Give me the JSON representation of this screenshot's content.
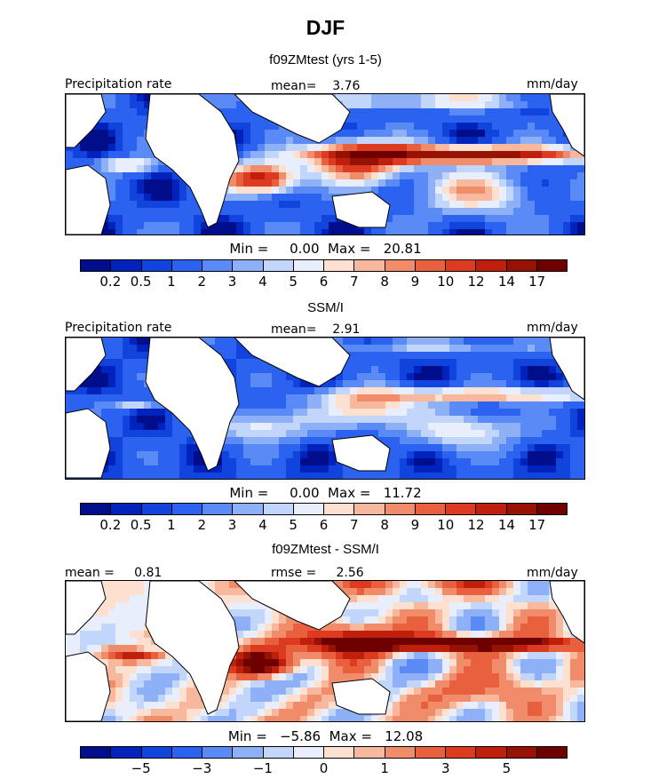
{
  "season": "DJF",
  "colors": {
    "ramp": [
      "#000e8c",
      "#0022bd",
      "#1144dd",
      "#2b62f0",
      "#5a8af5",
      "#8eb0f7",
      "#c2d5fa",
      "#e8eefb",
      "#fde0d0",
      "#f8b89e",
      "#f08c6a",
      "#e9603f",
      "#dd3b1f",
      "#c01f0e",
      "#961203",
      "#6e0000"
    ],
    "land": "#ffffff",
    "coast": "#000000"
  },
  "panels": [
    {
      "title": "f09ZMtest (yrs 1-5)",
      "left_label": "Precipitation rate",
      "mid_label": "mean=    3.76",
      "right_label": "mm/day",
      "minmax": "Min =     0.00  Max =   20.81",
      "tick_labels": [
        "0.2",
        "0.5",
        "1",
        "2",
        "3",
        "4",
        "5",
        "6",
        "7",
        "8",
        "9",
        "10",
        "12",
        "14",
        "17"
      ],
      "field_kind": "model"
    },
    {
      "title": "SSM/I",
      "left_label": "Precipitation rate",
      "mid_label": "mean=    2.91",
      "right_label": "mm/day",
      "minmax": "Min =     0.00  Max =   11.72",
      "tick_labels": [
        "0.2",
        "0.5",
        "1",
        "2",
        "3",
        "4",
        "5",
        "6",
        "7",
        "8",
        "9",
        "10",
        "12",
        "14",
        "17"
      ],
      "field_kind": "obs"
    },
    {
      "title": "f09ZMtest - SSM/I",
      "left_label": "mean =     0.81",
      "mid_label": "rmse =     2.56",
      "right_label": "mm/day",
      "minmax": "Min =   −5.86  Max =   12.08",
      "tick_labels": [
        "−5",
        "−3",
        "−1",
        "0",
        "1",
        "3",
        "5"
      ],
      "field_kind": "diff"
    }
  ],
  "chart_data": [
    {
      "type": "heatmap",
      "title": "f09ZMtest (yrs 1-5)",
      "units": "mm/day",
      "mean": 3.76,
      "min": 0.0,
      "max": 20.81,
      "contour_levels": [
        0.2,
        0.5,
        1,
        2,
        3,
        4,
        5,
        6,
        7,
        8,
        9,
        10,
        12,
        14,
        17
      ]
    },
    {
      "type": "heatmap",
      "title": "SSM/I",
      "units": "mm/day",
      "mean": 2.91,
      "min": 0.0,
      "max": 11.72,
      "contour_levels": [
        0.2,
        0.5,
        1,
        2,
        3,
        4,
        5,
        6,
        7,
        8,
        9,
        10,
        12,
        14,
        17
      ]
    },
    {
      "type": "heatmap",
      "title": "f09ZMtest - SSM/I",
      "units": "mm/day",
      "mean": 0.81,
      "rmse": 2.56,
      "min": -5.86,
      "max": 12.08,
      "contour_levels": [
        -8,
        -6,
        -5,
        -4,
        -3,
        -2,
        -1,
        -0.5,
        0,
        0.5,
        1,
        2,
        3,
        4,
        5,
        6
      ],
      "labeled_ticks": [
        -5,
        -3,
        -1,
        0,
        1,
        3,
        5
      ]
    }
  ]
}
